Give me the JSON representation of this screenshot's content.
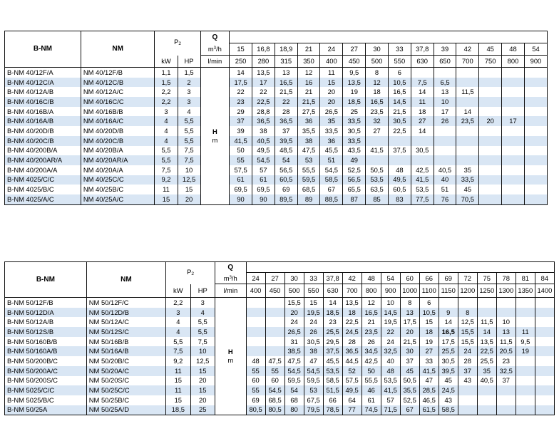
{
  "tables": [
    {
      "headers": {
        "col_bnm": "B-NM",
        "col_nm": "NM",
        "col_p2": "P",
        "p2_sub": "2",
        "kw": "kW",
        "hp": "HP",
        "q": "Q",
        "q_unit1": "m",
        "q_unit1_sup": "3",
        "q_unit1_rest": "/h",
        "q_unit2": "l/min",
        "h": "H",
        "h_unit": "m"
      },
      "q_m3h": [
        "15",
        "16,8",
        "18,9",
        "21",
        "24",
        "27",
        "30",
        "33",
        "37,8",
        "39",
        "42",
        "45",
        "48",
        "54"
      ],
      "q_lmin": [
        "250",
        "280",
        "315",
        "350",
        "400",
        "450",
        "500",
        "550",
        "630",
        "650",
        "700",
        "750",
        "800",
        "900"
      ],
      "rows": [
        {
          "bnm": "B-NM 40/12F/A",
          "nm": "NM 40/12F/B",
          "kw": "1,1",
          "hp": "1,5",
          "h": [
            "14",
            "13,5",
            "13",
            "12",
            "11",
            "9,5",
            "8",
            "6",
            "",
            "",
            "",
            "",
            "",
            ""
          ]
        },
        {
          "bnm": "B-NM 40/12C/A",
          "nm": "NM 40/12C/B",
          "kw": "1,5",
          "hp": "2",
          "h": [
            "17,5",
            "17",
            "16,5",
            "16",
            "15",
            "13,5",
            "12",
            "10,5",
            "7,5",
            "6,5",
            "",
            "",
            "",
            ""
          ]
        },
        {
          "bnm": "B-NM 40/12A/B",
          "nm": "NM 40/12A/C",
          "kw": "2,2",
          "hp": "3",
          "h": [
            "22",
            "22",
            "21,5",
            "21",
            "20",
            "19",
            "18",
            "16,5",
            "14",
            "13",
            "11,5",
            "",
            "",
            ""
          ]
        },
        {
          "bnm": "B-NM 40/16C/B",
          "nm": "NM 40/16C/C",
          "kw": "2,2",
          "hp": "3",
          "h": [
            "23",
            "22,5",
            "22",
            "21,5",
            "20",
            "18,5",
            "16,5",
            "14,5",
            "11",
            "10",
            "",
            "",
            "",
            ""
          ]
        },
        {
          "bnm": "B-NM 40/16B/A",
          "nm": "NM 40/16B/B",
          "kw": "3",
          "hp": "4",
          "h": [
            "29",
            "28,8",
            "28",
            "27,5",
            "26,5",
            "25",
            "23,5",
            "21,5",
            "18",
            "17",
            "14",
            "",
            "",
            ""
          ]
        },
        {
          "bnm": "B-NM 40/16A/B",
          "nm": "NM 40/16A/C",
          "kw": "4",
          "hp": "5,5",
          "h": [
            "37",
            "36,5",
            "36,5",
            "36",
            "35",
            "33,5",
            "32",
            "30,5",
            "27",
            "26",
            "23,5",
            "20",
            "17",
            ""
          ]
        },
        {
          "bnm": "B-NM 40/20D/B",
          "nm": "NM 40/20D/B",
          "kw": "4",
          "hp": "5,5",
          "h": [
            "39",
            "38",
            "37",
            "35,5",
            "33,5",
            "30,5",
            "27",
            "22,5",
            "14",
            "",
            "",
            "",
            "",
            ""
          ]
        },
        {
          "bnm": "B-NM 40/20C/B",
          "nm": "NM 40/20C/B",
          "kw": "4",
          "hp": "5,5",
          "h": [
            "41,5",
            "40,5",
            "39,5",
            "38",
            "36",
            "33,5",
            "",
            "",
            "",
            "",
            "",
            "",
            "",
            ""
          ]
        },
        {
          "bnm": "B-NM 40/200B/A",
          "nm": "NM 40/20B/A",
          "kw": "5,5",
          "hp": "7,5",
          "h": [
            "50",
            "49,5",
            "48,5",
            "47,5",
            "45,5",
            "43,5",
            "41,5",
            "37,5",
            "30,5",
            "",
            "",
            "",
            "",
            ""
          ]
        },
        {
          "bnm": "B-NM 40/200AR/A",
          "nm": "NM 40/20AR/A",
          "kw": "5,5",
          "hp": "7,5",
          "h": [
            "55",
            "54,5",
            "54",
            "53",
            "51",
            "49",
            "",
            "",
            "",
            "",
            "",
            "",
            "",
            ""
          ]
        },
        {
          "bnm": "B-NM 40/200A/A",
          "nm": "NM 40/20A/A",
          "kw": "7,5",
          "hp": "10",
          "h": [
            "57,5",
            "57",
            "56,5",
            "55,5",
            "54,5",
            "52,5",
            "50,5",
            "48",
            "42,5",
            "40,5",
            "35",
            "",
            "",
            ""
          ]
        },
        {
          "bnm": "B-NM 4025/C/C",
          "nm": "NM 40/25C/C",
          "kw": "9,2",
          "hp": "12,5",
          "h": [
            "61",
            "61",
            "60,5",
            "59,5",
            "58,5",
            "56,5",
            "53,5",
            "49,5",
            "41,5",
            "40",
            "33,5",
            "",
            "",
            ""
          ]
        },
        {
          "bnm": "B-NM 4025/B/C",
          "nm": "NM 40/25B/C",
          "kw": "11",
          "hp": "15",
          "h": [
            "69,5",
            "69,5",
            "69",
            "68,5",
            "67",
            "65,5",
            "63,5",
            "60,5",
            "53,5",
            "51",
            "45",
            "",
            "",
            ""
          ]
        },
        {
          "bnm": "B-NM 4025/A/C",
          "nm": "NM 40/25A/C",
          "kw": "15",
          "hp": "20",
          "h": [
            "90",
            "90",
            "89,5",
            "89",
            "88,5",
            "87",
            "85",
            "83",
            "77,5",
            "76",
            "70,5",
            "",
            "",
            ""
          ]
        }
      ]
    },
    {
      "headers": {
        "col_bnm": "B-NM",
        "col_nm": "NM",
        "col_p2": "P",
        "p2_sub": "2",
        "kw": "kW",
        "hp": "HP",
        "q": "Q",
        "q_unit1": "m",
        "q_unit1_sup": "3",
        "q_unit1_rest": "/h",
        "q_unit2": "l/min",
        "h": "H",
        "h_unit": "m"
      },
      "q_m3h": [
        "24",
        "27",
        "30",
        "33",
        "37,8",
        "42",
        "48",
        "54",
        "60",
        "66",
        "69",
        "72",
        "75",
        "78",
        "81",
        "84"
      ],
      "q_lmin": [
        "400",
        "450",
        "500",
        "550",
        "630",
        "700",
        "800",
        "900",
        "1000",
        "1100",
        "1150",
        "1200",
        "1250",
        "1300",
        "1350",
        "1400"
      ],
      "rows": [
        {
          "bnm": "B-NM 50/12F/B",
          "nm": "NM 50/12F/C",
          "kw": "2,2",
          "hp": "3",
          "h": [
            "",
            "",
            "15,5",
            "15",
            "14",
            "13,5",
            "12",
            "10",
            "8",
            "6",
            "",
            "",
            "",
            "",
            "",
            ""
          ]
        },
        {
          "bnm": "B-NM 50/12D/A",
          "nm": "NM 50/12D/B",
          "kw": "3",
          "hp": "4",
          "h": [
            "",
            "",
            "20",
            "19,5",
            "18,5",
            "18",
            "16,5",
            "14,5",
            "13",
            "10,5",
            "9",
            "8",
            "",
            "",
            "",
            ""
          ]
        },
        {
          "bnm": "B-NM 50/12A/B",
          "nm": "NM 50/12A/C",
          "kw": "4",
          "hp": "5,5",
          "h": [
            "",
            "",
            "24",
            "24",
            "23",
            "22,5",
            "21",
            "19,5",
            "17,5",
            "15",
            "14",
            "12,5",
            "11,5",
            "10",
            "",
            ""
          ]
        },
        {
          "bnm": "B-NM 50/12S/B",
          "nm": "NM 50/12S/C",
          "kw": "4",
          "hp": "5,5",
          "h": [
            "",
            "",
            "26,5",
            "26",
            "25,5",
            "24,5",
            "23,5",
            "22",
            "20",
            "18",
            "16,5",
            "15,5",
            "14",
            "13",
            "11",
            ""
          ]
        },
        {
          "bnm": "B-NM 50/160B/B",
          "nm": "NM 50/16B/B",
          "kw": "5,5",
          "hp": "7,5",
          "h": [
            "",
            "",
            "31",
            "30,5",
            "29,5",
            "28",
            "26",
            "24",
            "21,5",
            "19",
            "17,5",
            "15,5",
            "13,5",
            "11,5",
            "9,5",
            ""
          ]
        },
        {
          "bnm": "B-NM 50/160A/B",
          "nm": "NM 50/16A/B",
          "kw": "7,5",
          "hp": "10",
          "h": [
            "",
            "",
            "38,5",
            "38",
            "37,5",
            "36,5",
            "34,5",
            "32,5",
            "30",
            "27",
            "25,5",
            "24",
            "22,5",
            "20,5",
            "19",
            ""
          ]
        },
        {
          "bnm": "B-NM 50/200B/C",
          "nm": "NM 50/20B/C",
          "kw": "9,2",
          "hp": "12,5",
          "h": [
            "48",
            "47,5",
            "47,5",
            "47",
            "45,5",
            "44,5",
            "42,5",
            "40",
            "37",
            "33",
            "30,5",
            "28",
            "25,5",
            "23",
            "",
            ""
          ]
        },
        {
          "bnm": "B-NM 50/200A/C",
          "nm": "NM 50/20A/C",
          "kw": "11",
          "hp": "15",
          "h": [
            "55",
            "55",
            "54,5",
            "54,5",
            "53,5",
            "52",
            "50",
            "48",
            "45",
            "41,5",
            "39,5",
            "37",
            "35",
            "32,5",
            "",
            ""
          ]
        },
        {
          "bnm": "B-NM 50/200S/C",
          "nm": "NM 50/20S/C",
          "kw": "15",
          "hp": "20",
          "h": [
            "60",
            "60",
            "59,5",
            "59,5",
            "58,5",
            "57,5",
            "55,5",
            "53,5",
            "50,5",
            "47",
            "45",
            "43",
            "40,5",
            "37",
            "",
            ""
          ]
        },
        {
          "bnm": "B-NM 5025/C/C",
          "nm": "NM 50/25C/C",
          "kw": "11",
          "hp": "15",
          "h": [
            "55",
            "54,5",
            "54",
            "53",
            "51,5",
            "49,5",
            "46",
            "41,5",
            "35,5",
            "28,5",
            "24,5",
            "",
            "",
            "",
            "",
            ""
          ]
        },
        {
          "bnm": "B-NM 5025/B/C",
          "nm": "NM 50/25B/C",
          "kw": "15",
          "hp": "20",
          "h": [
            "69",
            "68,5",
            "68",
            "67,5",
            "66",
            "64",
            "61",
            "57",
            "52,5",
            "46,5",
            "43",
            "",
            "",
            "",
            "",
            ""
          ]
        },
        {
          "bnm": "B-NM 50/25A",
          "nm": "NM 50/25A/D",
          "kw": "18,5",
          "hp": "25",
          "h": [
            "80,5",
            "80,5",
            "80",
            "79,5",
            "78,5",
            "77",
            "74,5",
            "71,5",
            "67",
            "61,5",
            "58,5",
            "",
            "",
            "",
            "",
            ""
          ]
        }
      ],
      "bold_cell": {
        "row": 3,
        "col": 10
      }
    }
  ]
}
